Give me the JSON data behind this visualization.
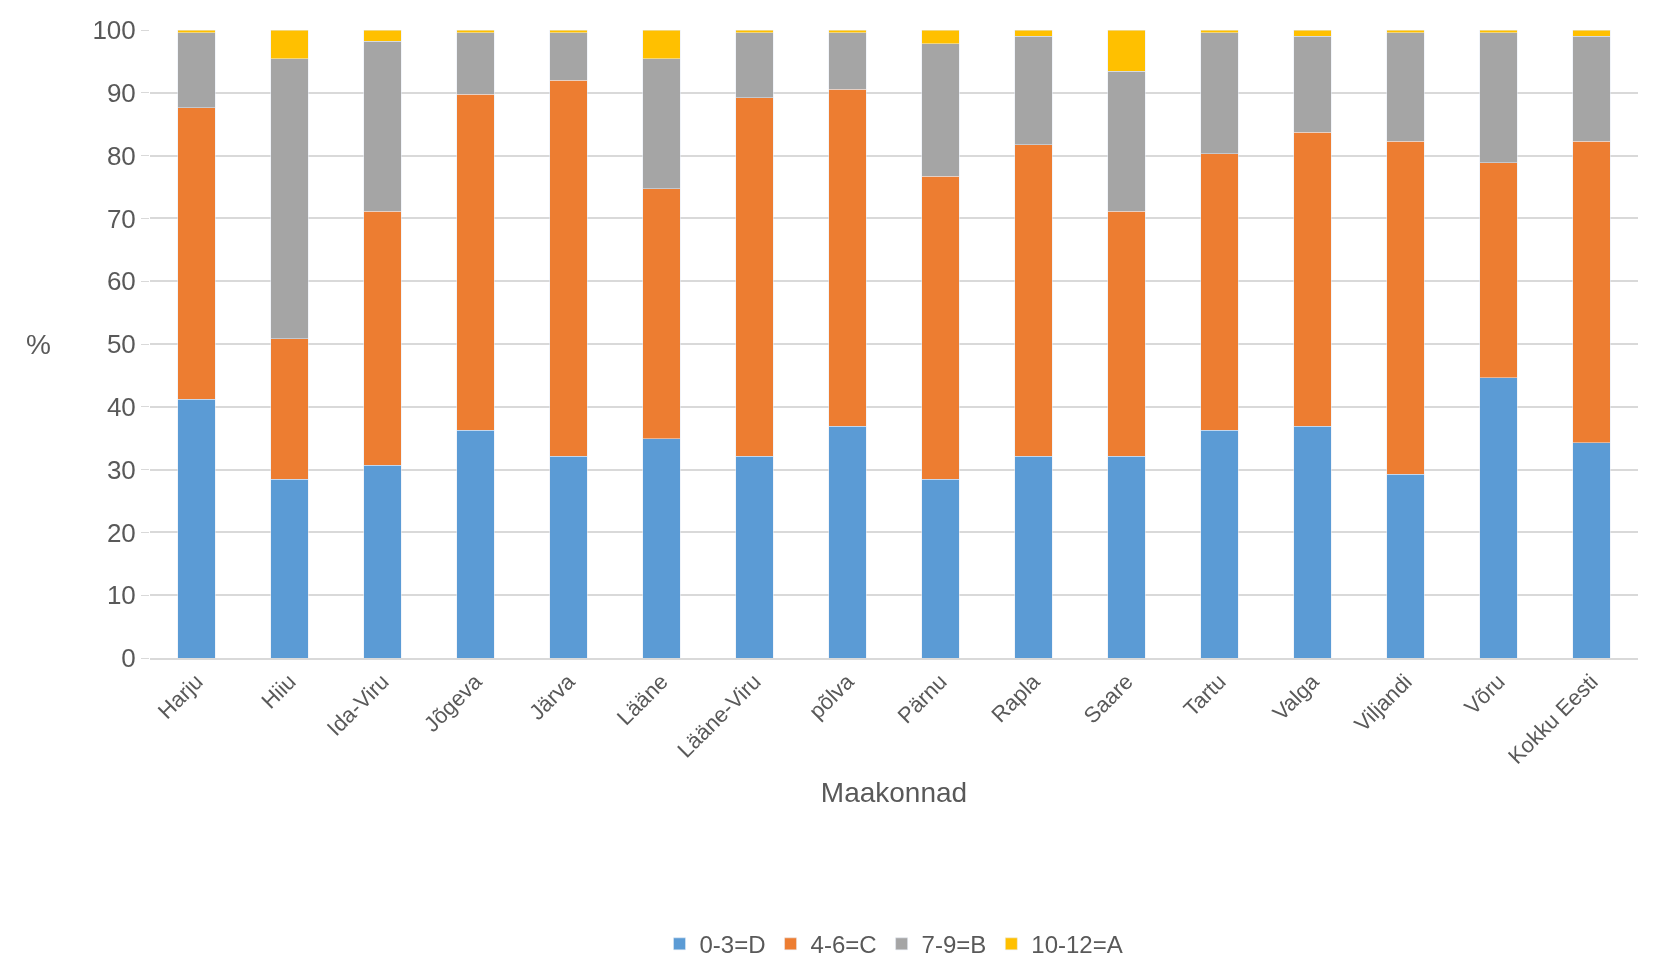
{
  "chart_data": {
    "type": "bar",
    "stacked": true,
    "xlabel": "Maakonnad",
    "ylabel": "%",
    "categories": [
      "Harju",
      "Hiiu",
      "Ida-Viru",
      "Jõgeva",
      "Järva",
      "Lääne",
      "Lääne-Viru",
      "põlva",
      "Pärnu",
      "Rapla",
      "Saare",
      "Tartu",
      "Valga",
      "Viljandi",
      "Võru",
      "Kokku Eesti"
    ],
    "series": [
      {
        "name": "0-3=D",
        "color": "#5b9bd5",
        "values": [
          41.2,
          28.5,
          30.7,
          36.3,
          32.1,
          34.9,
          32.1,
          36.9,
          28.5,
          32.1,
          32.1,
          36.3,
          36.9,
          29.3,
          44.6,
          34.3
        ]
      },
      {
        "name": "4-6=C",
        "color": "#ed7d31",
        "values": [
          46.4,
          22.3,
          40.4,
          53.5,
          59.9,
          39.8,
          57.1,
          53.7,
          48.2,
          49.6,
          39.0,
          44.0,
          46.8,
          53.0,
          34.3,
          48.0
        ]
      },
      {
        "name": "7-9=B",
        "color": "#a5a5a5",
        "values": [
          12.0,
          44.6,
          27.1,
          9.8,
          7.6,
          20.7,
          10.4,
          9.0,
          21.1,
          17.3,
          22.3,
          19.3,
          15.3,
          17.3,
          20.7,
          16.7
        ]
      },
      {
        "name": "10-12=A",
        "color": "#ffc000",
        "values": [
          0.4,
          4.6,
          1.8,
          0.4,
          0.4,
          4.6,
          0.4,
          0.4,
          2.2,
          1.0,
          6.6,
          0.4,
          1.0,
          0.4,
          0.4,
          1.0
        ]
      }
    ],
    "ylim": [
      0,
      100
    ],
    "yticks": [
      0,
      10,
      20,
      30,
      40,
      50,
      60,
      70,
      80,
      90,
      100
    ],
    "grid": "y",
    "legend": "bottom"
  }
}
